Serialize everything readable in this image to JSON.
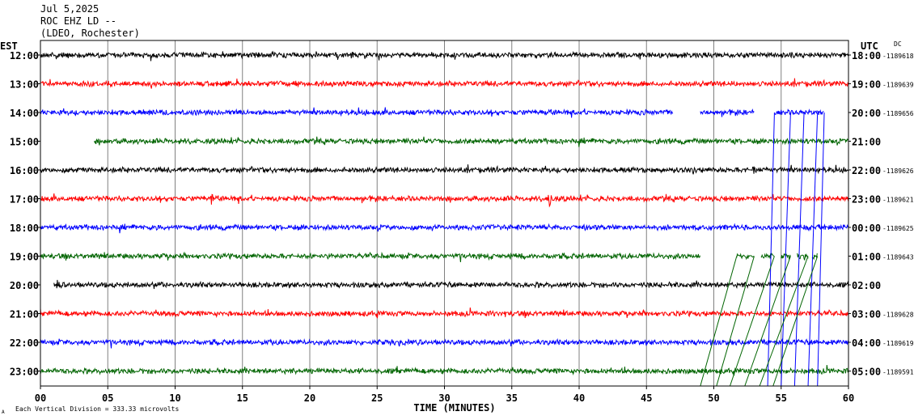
{
  "header": {
    "date": "Jul 5,2025",
    "station": "ROC EHZ LD --",
    "network": "(LDEO, Rochester)"
  },
  "axes": {
    "left_tz": "EST",
    "right_tz": "UTC",
    "dc_label": "DC",
    "xlabel": "TIME (MINUTES)",
    "scale_note": "Each Vertical Division =  333.33 microvolts",
    "scale_mark": "A"
  },
  "chart_data": {
    "type": "line",
    "title": "",
    "xlabel": "TIME (MINUTES)",
    "xlim": [
      0,
      60
    ],
    "x_ticks": [
      "00",
      "05",
      "10",
      "15",
      "20",
      "25",
      "30",
      "35",
      "40",
      "45",
      "50",
      "55",
      "60"
    ],
    "grid": "vertical",
    "colors": [
      "#000000",
      "#ff0000",
      "#0000ff",
      "#006400"
    ],
    "rows": [
      {
        "est": "12:00",
        "utc": "18:00",
        "dc": "-1189618",
        "color": "#000000",
        "segments": [
          [
            0,
            60
          ]
        ]
      },
      {
        "est": "13:00",
        "utc": "19:00",
        "dc": "-1189639",
        "color": "#ff0000",
        "segments": [
          [
            0,
            60
          ]
        ]
      },
      {
        "est": "14:00",
        "utc": "20:00",
        "dc": "-1189656",
        "color": "#0000ff",
        "segments": [
          [
            0,
            47
          ],
          [
            49,
            53
          ],
          [
            54.5,
            55.7
          ],
          [
            55.7,
            56.7
          ],
          [
            56.7,
            57.7
          ],
          [
            57.7,
            58.2
          ]
        ]
      },
      {
        "est": "15:00",
        "utc": "21:00",
        "dc": "",
        "color": "#006400",
        "segments": [
          [
            4,
            60
          ]
        ]
      },
      {
        "est": "16:00",
        "utc": "22:00",
        "dc": "-1189626",
        "color": "#000000",
        "segments": [
          [
            0,
            60
          ]
        ]
      },
      {
        "est": "17:00",
        "utc": "23:00",
        "dc": "-1189621",
        "color": "#ff0000",
        "segments": [
          [
            0,
            60
          ]
        ]
      },
      {
        "est": "18:00",
        "utc": "00:00",
        "dc": "-1189625",
        "color": "#0000ff",
        "segments": [
          [
            0,
            60
          ]
        ]
      },
      {
        "est": "19:00",
        "utc": "01:00",
        "dc": "-1189643",
        "color": "#006400",
        "segments": [
          [
            0,
            49
          ],
          [
            51.7,
            53
          ],
          [
            53.5,
            54.5
          ],
          [
            55,
            55.7
          ],
          [
            56.2,
            57
          ],
          [
            57.3,
            57.7
          ]
        ]
      },
      {
        "est": "20:00",
        "utc": "02:00",
        "dc": "",
        "color": "#000000",
        "segments": [
          [
            1,
            60
          ]
        ]
      },
      {
        "est": "21:00",
        "utc": "03:00",
        "dc": "-1189628",
        "color": "#ff0000",
        "segments": [
          [
            0,
            60
          ]
        ]
      },
      {
        "est": "22:00",
        "utc": "04:00",
        "dc": "-1189619",
        "color": "#0000ff",
        "segments": [
          [
            0,
            60
          ]
        ]
      },
      {
        "est": "23:00",
        "utc": "05:00",
        "dc": "-1189591",
        "color": "#006400",
        "segments": [
          [
            0,
            60
          ]
        ]
      }
    ],
    "events": [
      {
        "row": 0,
        "minute": 2,
        "amp": 7
      },
      {
        "row": 4,
        "minute": 2.5,
        "amp": 6
      },
      {
        "row": 4,
        "minute": 43.5,
        "amp": 6
      },
      {
        "row": 4,
        "minute": 48.5,
        "amp": 7
      },
      {
        "row": 4,
        "minute": 53,
        "amp": 10
      },
      {
        "row": 5,
        "minute": 12.7,
        "amp": 9
      },
      {
        "row": 5,
        "minute": 37.8,
        "amp": 12
      },
      {
        "row": 8,
        "minute": 1.3,
        "amp": 8
      },
      {
        "row": 9,
        "minute": 34.5,
        "amp": 6
      }
    ],
    "runout_lines": [
      {
        "color": "#0000ff",
        "from_row": 2,
        "from_minute": 54.5,
        "to_minute": 54.0
      },
      {
        "color": "#0000ff",
        "from_row": 2,
        "from_minute": 55.7,
        "to_minute": 55.0
      },
      {
        "color": "#0000ff",
        "from_row": 2,
        "from_minute": 56.7,
        "to_minute": 56.0
      },
      {
        "color": "#0000ff",
        "from_row": 2,
        "from_minute": 57.7,
        "to_minute": 57.0
      },
      {
        "color": "#0000ff",
        "from_row": 2,
        "from_minute": 58.2,
        "to_minute": 57.7
      },
      {
        "color": "#006400",
        "from_row": 7,
        "from_minute": 51.7,
        "to_minute": 49.0
      },
      {
        "color": "#006400",
        "from_row": 7,
        "from_minute": 53.0,
        "to_minute": 50.2
      },
      {
        "color": "#006400",
        "from_row": 7,
        "from_minute": 54.5,
        "to_minute": 51.2
      },
      {
        "color": "#006400",
        "from_row": 7,
        "from_minute": 55.7,
        "to_minute": 52.3
      },
      {
        "color": "#006400",
        "from_row": 7,
        "from_minute": 57.0,
        "to_minute": 53.4
      },
      {
        "color": "#006400",
        "from_row": 7,
        "from_minute": 57.7,
        "to_minute": 54.4
      }
    ]
  }
}
